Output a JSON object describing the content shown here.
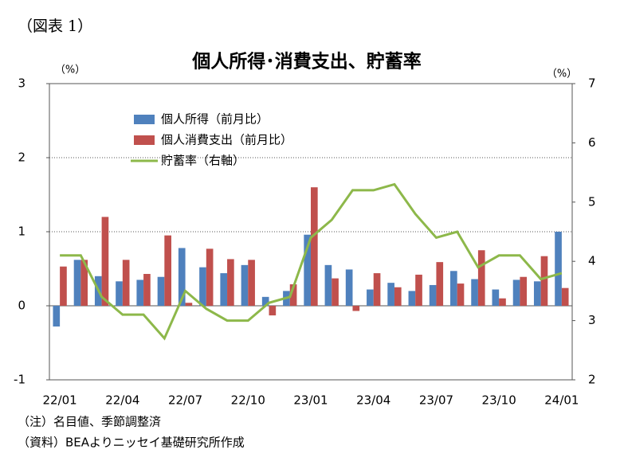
{
  "figure_label": "（図表 1）",
  "notes": [
    "（注）名目値、季節調整済",
    "（資料）BEAよりニッセイ基礎研究所作成"
  ],
  "chart_data": {
    "type": "bar_line",
    "title": "個人所得･消費支出、貯蓄率",
    "y_label": "（%）",
    "y2_label": "（%）",
    "categories": [
      "22/01",
      null,
      null,
      "22/04",
      null,
      null,
      "22/07",
      null,
      null,
      "22/10",
      null,
      null,
      "23/01",
      null,
      null,
      "23/04",
      null,
      null,
      "23/07",
      null,
      null,
      "23/10",
      null,
      null,
      "24/01"
    ],
    "series": [
      {
        "name": "個人所得（前月比）",
        "color": "#4f81bd",
        "kind": "bar",
        "values": [
          -0.28,
          0.62,
          0.4,
          0.33,
          0.35,
          0.39,
          0.78,
          0.52,
          0.44,
          0.55,
          0.12,
          0.2,
          0.96,
          0.55,
          0.49,
          0.22,
          0.31,
          0.2,
          0.28,
          0.47,
          0.36,
          0.22,
          0.35,
          0.33,
          1.0
        ]
      },
      {
        "name": "個人消費支出（前月比）",
        "color": "#c0504d",
        "kind": "bar",
        "values": [
          0.53,
          0.62,
          1.2,
          0.62,
          0.43,
          0.95,
          0.04,
          0.77,
          0.63,
          0.62,
          -0.13,
          0.29,
          1.6,
          0.37,
          -0.07,
          0.44,
          0.25,
          0.42,
          0.59,
          0.3,
          0.75,
          0.1,
          0.39,
          0.67,
          0.24
        ]
      },
      {
        "name": "貯蓄率（右軸）",
        "color": "#8db84a",
        "kind": "line",
        "axis": "y2",
        "values": [
          4.1,
          4.1,
          3.4,
          3.1,
          3.1,
          2.7,
          3.5,
          3.2,
          3.0,
          3.0,
          3.3,
          3.4,
          4.4,
          4.7,
          5.2,
          5.2,
          5.3,
          4.8,
          4.4,
          4.5,
          3.9,
          4.1,
          4.1,
          3.7,
          3.8
        ]
      }
    ],
    "ylim": [
      -1,
      3
    ],
    "yticks": [
      -1,
      0,
      1,
      2,
      3
    ],
    "y2lim": [
      2,
      7
    ],
    "y2ticks": [
      2,
      3,
      4,
      5,
      6,
      7
    ],
    "grid": true,
    "legend": "upper left"
  }
}
